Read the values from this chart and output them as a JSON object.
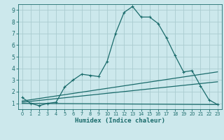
{
  "bg_color": "#cce8ec",
  "line_color": "#1a6b6b",
  "grid_color": "#aaccd0",
  "xlabel": "Humidex (Indice chaleur)",
  "xlim": [
    -0.5,
    23.5
  ],
  "ylim": [
    0.5,
    9.5
  ],
  "xticks": [
    0,
    1,
    2,
    3,
    4,
    5,
    6,
    7,
    8,
    9,
    10,
    11,
    12,
    13,
    14,
    15,
    16,
    17,
    18,
    19,
    20,
    21,
    22,
    23
  ],
  "yticks": [
    1,
    2,
    3,
    4,
    5,
    6,
    7,
    8,
    9
  ],
  "line1_x": [
    0,
    1,
    2,
    3,
    4,
    5,
    6,
    7,
    8,
    9,
    10,
    11,
    12,
    13,
    14,
    15,
    16,
    17,
    18,
    19,
    20,
    21,
    22,
    23
  ],
  "line1_y": [
    1.5,
    1.0,
    0.8,
    1.0,
    1.1,
    2.4,
    3.0,
    3.5,
    3.4,
    3.3,
    4.6,
    7.0,
    8.8,
    9.3,
    8.4,
    8.4,
    7.85,
    6.6,
    5.1,
    3.7,
    3.8,
    2.5,
    1.3,
    0.9
  ],
  "line2_x": [
    0,
    23
  ],
  "line2_y": [
    1.2,
    3.7
  ],
  "line3_x": [
    0,
    23
  ],
  "line3_y": [
    1.1,
    2.85
  ],
  "line4_x": [
    0,
    23
  ],
  "line4_y": [
    1.0,
    0.9
  ],
  "lw": 0.9,
  "ms": 3.0
}
